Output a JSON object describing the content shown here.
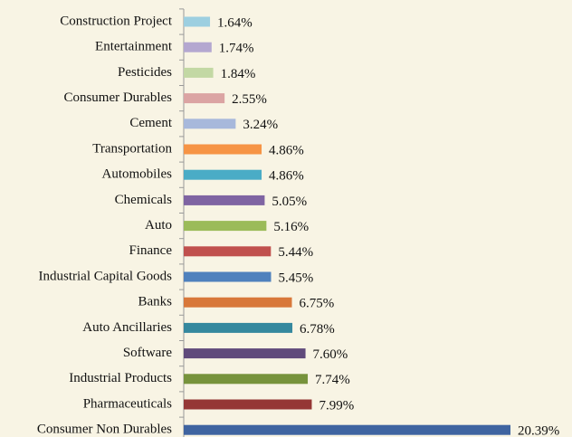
{
  "chart_data": {
    "type": "barh",
    "categories": [
      "Construction Project",
      "Entertainment",
      "Pesticides",
      "Consumer Durables",
      "Cement",
      "Transportation",
      "Automobiles",
      "Chemicals",
      "Auto",
      "Finance",
      "Industrial Capital Goods",
      "Banks",
      "Auto Ancillaries",
      "Software",
      "Industrial Products",
      "Pharmaceuticals",
      "Consumer Non Durables"
    ],
    "values": [
      1.64,
      1.74,
      1.84,
      2.55,
      3.24,
      4.86,
      4.86,
      5.05,
      5.16,
      5.44,
      5.45,
      6.75,
      6.78,
      7.6,
      7.74,
      7.99,
      20.39
    ],
    "value_labels": [
      "1.64%",
      "1.74%",
      "1.84%",
      "2.55%",
      "3.24%",
      "4.86%",
      "4.86%",
      "5.05%",
      "5.16%",
      "5.44%",
      "5.45%",
      "6.75%",
      "6.78%",
      "7.60%",
      "7.74%",
      "7.99%",
      "20.39%"
    ],
    "colors": [
      "#9dcfe0",
      "#b4a7d0",
      "#c3d8a4",
      "#dba4a3",
      "#a7b8db",
      "#f69445",
      "#4aacc6",
      "#7f64a2",
      "#9bbb59",
      "#c0504d",
      "#4f81bd",
      "#d8783a",
      "#35889e",
      "#604a7b",
      "#77933c",
      "#953735",
      "#3f64a0"
    ]
  }
}
